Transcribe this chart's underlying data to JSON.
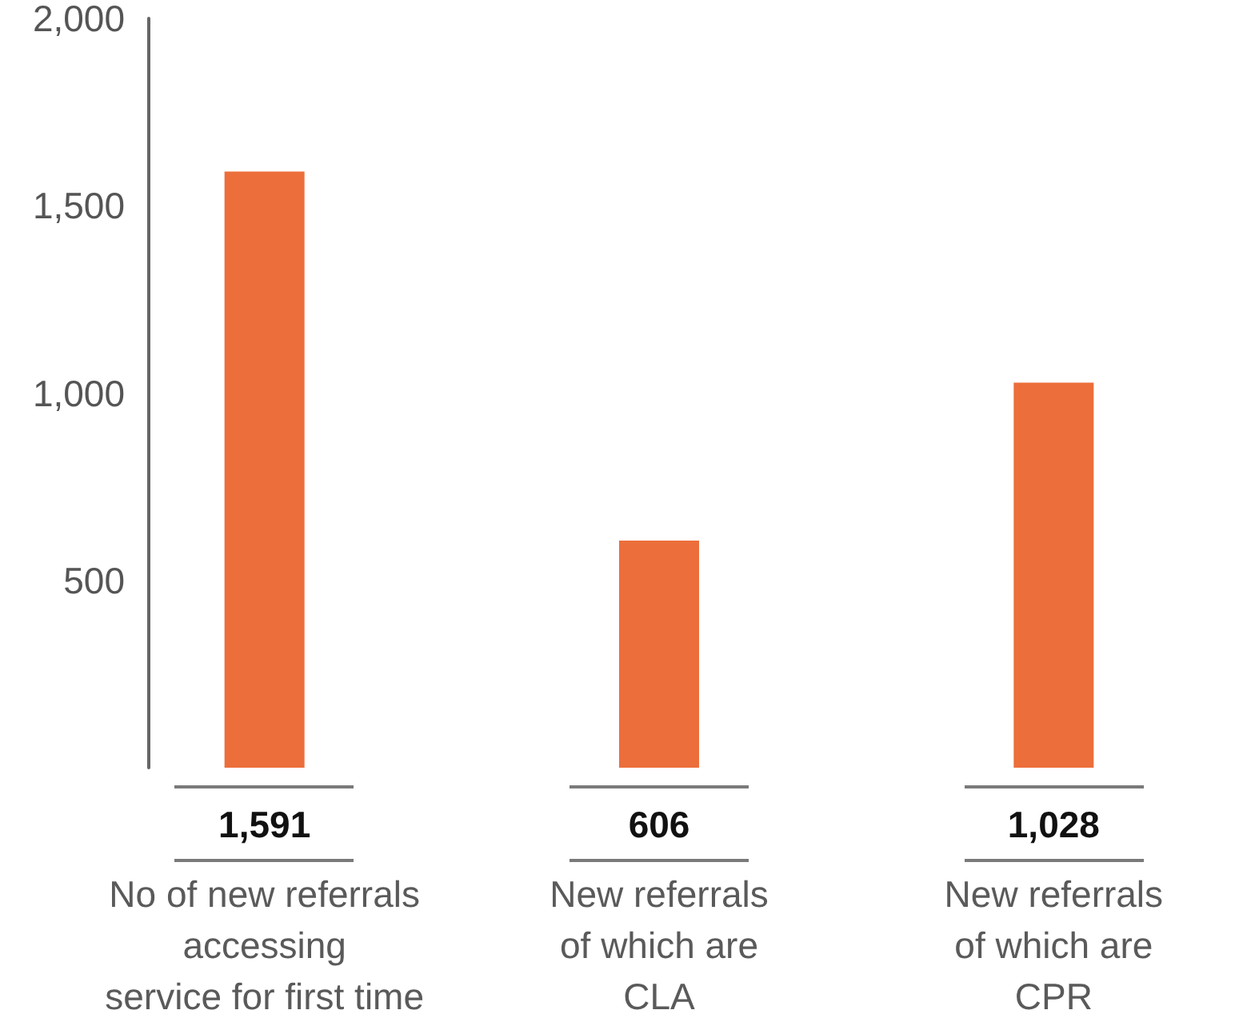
{
  "chart_data": {
    "type": "bar",
    "categories": [
      "No of new referrals\naccessing\nservice for first time",
      "New referrals\nof which are\nCLA",
      "New referrals\nof which are\nCPR"
    ],
    "values": [
      1591,
      606,
      1028
    ],
    "value_labels": [
      "1,591",
      "606",
      "1,028"
    ],
    "color": "#ec6e3b",
    "ylim": [
      0,
      2000
    ],
    "yticks": [
      500,
      {
        "value": 1000,
        "label": "1,000"
      },
      {
        "value": 1500,
        "label": "1,500"
      },
      {
        "value": 2000,
        "label": "2,000"
      }
    ]
  }
}
